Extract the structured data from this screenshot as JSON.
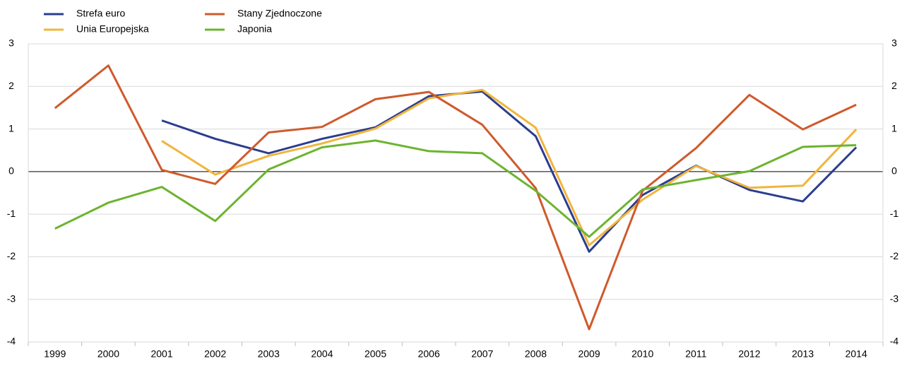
{
  "chart_data": {
    "type": "line",
    "categories": [
      "1999",
      "2000",
      "2001",
      "2002",
      "2003",
      "2004",
      "2005",
      "2006",
      "2007",
      "2008",
      "2009",
      "2010",
      "2011",
      "2012",
      "2013",
      "2014"
    ],
    "series": [
      {
        "name": "Strefa euro",
        "color": "#2b3d8f",
        "values": [
          null,
          null,
          1.2,
          0.77,
          0.43,
          0.77,
          1.04,
          1.77,
          1.88,
          0.83,
          -1.88,
          -0.55,
          0.14,
          -0.43,
          -0.7,
          0.57
        ]
      },
      {
        "name": "Unia Europejska",
        "color": "#f0b53c",
        "values": [
          null,
          null,
          0.72,
          -0.07,
          0.37,
          0.66,
          1.01,
          1.72,
          1.92,
          1.03,
          -1.73,
          -0.66,
          0.13,
          -0.38,
          -0.33,
          0.99
        ]
      },
      {
        "name": "Stany Zjednoczone",
        "color": "#cf5a2c",
        "values": [
          1.49,
          2.49,
          0.04,
          -0.29,
          0.92,
          1.05,
          1.7,
          1.87,
          1.1,
          -0.39,
          -3.7,
          -0.45,
          0.55,
          1.8,
          0.99,
          1.57
        ]
      },
      {
        "name": "Japonia",
        "color": "#6cb42f",
        "values": [
          -1.34,
          -0.73,
          -0.36,
          -1.16,
          0.05,
          0.57,
          0.73,
          0.48,
          0.43,
          -0.45,
          -1.53,
          -0.42,
          -0.2,
          0.01,
          0.58,
          0.62
        ]
      }
    ],
    "ylim": [
      -4,
      3
    ],
    "yticks": [
      -4,
      -3,
      -2,
      -1,
      0,
      1,
      2,
      3
    ],
    "grid": true
  }
}
